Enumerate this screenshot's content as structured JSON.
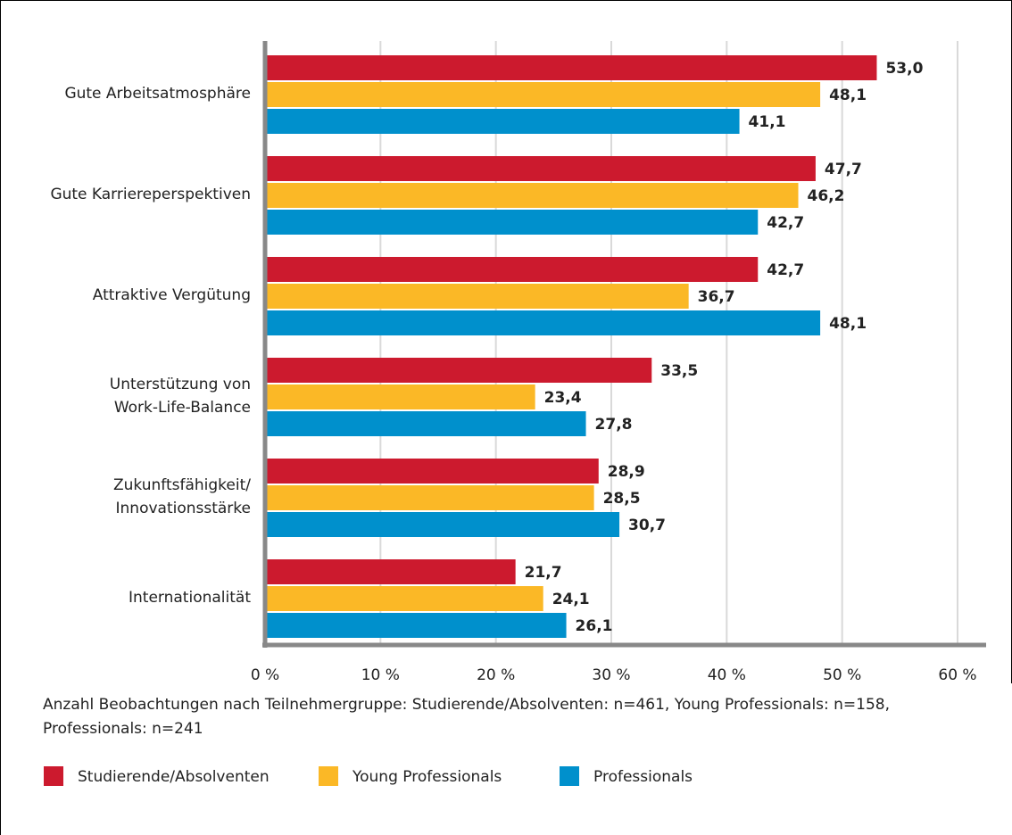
{
  "chart_data": {
    "type": "bar",
    "orientation": "horizontal",
    "categories": [
      "Gute Arbeitsatmosphäre",
      "Gute Karriereperspektiven",
      "Attraktive Vergütung",
      "Unterstützung von\nWork-Life-Balance",
      "Zukunftsfähigkeit/\nInnovationsstärke",
      "Internationalität"
    ],
    "series": [
      {
        "name": "Studierende/Absolventen",
        "color": "#cc1a2e",
        "values": [
          53.0,
          47.7,
          42.7,
          33.5,
          28.9,
          21.7
        ],
        "value_labels": [
          "53,0",
          "47,7",
          "42,7",
          "33,5",
          "28,9",
          "21,7"
        ]
      },
      {
        "name": "Young Professionals",
        "color": "#fbb826",
        "values": [
          48.1,
          46.2,
          36.7,
          23.4,
          28.5,
          24.1
        ],
        "value_labels": [
          "48,1",
          "46,2",
          "36,7",
          "23,4",
          "28,5",
          "24,1"
        ]
      },
      {
        "name": "Professionals",
        "color": "#0090cc",
        "values": [
          41.1,
          42.7,
          48.1,
          27.8,
          30.7,
          26.1
        ],
        "value_labels": [
          "41,1",
          "42,7",
          "48,1",
          "27,8",
          "30,7",
          "26,1"
        ]
      }
    ],
    "xlim": [
      0,
      60
    ],
    "xticks": [
      {
        "value": 0,
        "label": "0 %"
      },
      {
        "value": 10,
        "label": "10 %"
      },
      {
        "value": 20,
        "label": "20 %"
      },
      {
        "value": 30,
        "label": "30 %"
      },
      {
        "value": 40,
        "label": "40 %"
      },
      {
        "value": 50,
        "label": "50 %"
      },
      {
        "value": 60,
        "label": "60 %"
      }
    ],
    "grid": true,
    "note": "Anzahl Beobachtungen nach Teilnehmergruppe: Studierende/Absolventen: n=461, Young Professionals: n=158, Professionals: n=241"
  }
}
